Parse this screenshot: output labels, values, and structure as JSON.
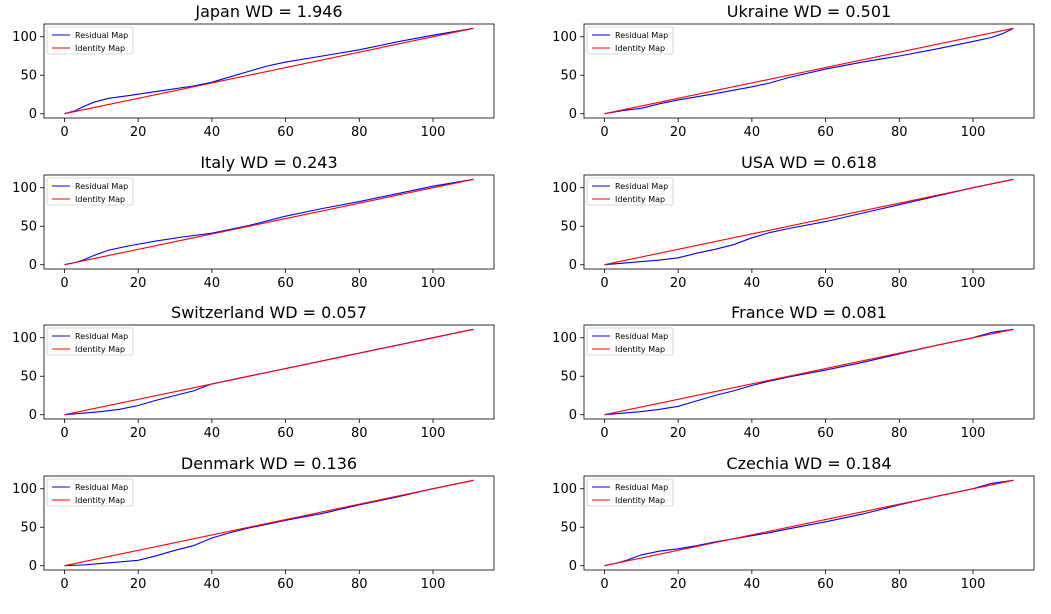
{
  "colors": {
    "residual": "#0000ff",
    "identity": "#ff0000",
    "axis": "#000000",
    "legend_border": "#cccccc"
  },
  "legend_labels": [
    "Residual Map",
    "Identity Map"
  ],
  "chart_data": [
    {
      "type": "line",
      "title": "Japan WD = 1.946",
      "xlim": [
        0,
        111
      ],
      "ylim": [
        0,
        111
      ],
      "xticks": [
        0,
        20,
        40,
        60,
        80,
        100
      ],
      "yticks": [
        0,
        50,
        100
      ],
      "legend": "top-left",
      "series": [
        {
          "name": "Residual Map",
          "x": [
            0,
            3,
            5,
            8,
            12,
            18,
            25,
            35,
            40,
            45,
            50,
            55,
            60,
            70,
            80,
            90,
            100,
            111
          ],
          "y": [
            0,
            4,
            9,
            15,
            20,
            24,
            29,
            36,
            41,
            48,
            55,
            62,
            67,
            75,
            83,
            93,
            102,
            111
          ]
        },
        {
          "name": "Identity Map",
          "x": [
            0,
            111
          ],
          "y": [
            0,
            111
          ]
        }
      ]
    },
    {
      "type": "line",
      "title": "Ukraine WD = 0.501",
      "xlim": [
        0,
        111
      ],
      "ylim": [
        0,
        111
      ],
      "xticks": [
        0,
        20,
        40,
        60,
        80,
        100
      ],
      "yticks": [
        0,
        50,
        100
      ],
      "legend": "top-left",
      "series": [
        {
          "name": "Residual Map",
          "x": [
            0,
            5,
            10,
            15,
            20,
            30,
            40,
            45,
            50,
            60,
            70,
            80,
            90,
            100,
            105,
            108,
            111
          ],
          "y": [
            0,
            4,
            7,
            13,
            18,
            26,
            35,
            40,
            47,
            58,
            67,
            75,
            84,
            94,
            99,
            104,
            111
          ]
        },
        {
          "name": "Identity Map",
          "x": [
            0,
            111
          ],
          "y": [
            0,
            111
          ]
        }
      ]
    },
    {
      "type": "line",
      "title": "Italy WD = 0.243",
      "xlim": [
        0,
        111
      ],
      "ylim": [
        0,
        111
      ],
      "xticks": [
        0,
        20,
        40,
        60,
        80,
        100
      ],
      "yticks": [
        0,
        50,
        100
      ],
      "legend": "top-left",
      "series": [
        {
          "name": "Residual Map",
          "x": [
            0,
            3,
            5,
            8,
            12,
            18,
            25,
            32,
            40,
            50,
            60,
            70,
            80,
            90,
            100,
            111
          ],
          "y": [
            0,
            3,
            6,
            12,
            19,
            25,
            31,
            36,
            41,
            51,
            63,
            73,
            82,
            92,
            102,
            111
          ]
        },
        {
          "name": "Identity Map",
          "x": [
            0,
            111
          ],
          "y": [
            0,
            111
          ]
        }
      ]
    },
    {
      "type": "line",
      "title": "USA WD = 0.618",
      "xlim": [
        0,
        111
      ],
      "ylim": [
        0,
        111
      ],
      "xticks": [
        0,
        20,
        40,
        60,
        80,
        100
      ],
      "yticks": [
        0,
        50,
        100
      ],
      "legend": "top-left",
      "series": [
        {
          "name": "Residual Map",
          "x": [
            0,
            5,
            10,
            15,
            20,
            25,
            30,
            35,
            40,
            45,
            50,
            60,
            70,
            80,
            90,
            100,
            111
          ],
          "y": [
            0,
            2,
            4,
            6,
            9,
            15,
            20,
            26,
            35,
            42,
            47,
            56,
            67,
            78,
            89,
            100,
            111
          ]
        },
        {
          "name": "Identity Map",
          "x": [
            0,
            111
          ],
          "y": [
            0,
            111
          ]
        }
      ]
    },
    {
      "type": "line",
      "title": "Switzerland WD = 0.057",
      "xlim": [
        0,
        111
      ],
      "ylim": [
        0,
        111
      ],
      "xticks": [
        0,
        20,
        40,
        60,
        80,
        100
      ],
      "yticks": [
        0,
        50,
        100
      ],
      "legend": "top-left",
      "series": [
        {
          "name": "Residual Map",
          "x": [
            0,
            5,
            10,
            15,
            20,
            25,
            30,
            35,
            40,
            45,
            50,
            60,
            70,
            80,
            90,
            100,
            111
          ],
          "y": [
            0,
            2,
            4,
            7,
            12,
            19,
            25,
            31,
            40,
            45,
            50,
            60,
            70,
            80,
            90,
            100,
            111
          ]
        },
        {
          "name": "Identity Map",
          "x": [
            0,
            111
          ],
          "y": [
            0,
            111
          ]
        }
      ]
    },
    {
      "type": "line",
      "title": "France WD = 0.081",
      "xlim": [
        0,
        111
      ],
      "ylim": [
        0,
        111
      ],
      "xticks": [
        0,
        20,
        40,
        60,
        80,
        100
      ],
      "yticks": [
        0,
        50,
        100
      ],
      "legend": "top-left",
      "series": [
        {
          "name": "Residual Map",
          "x": [
            0,
            5,
            10,
            15,
            20,
            25,
            30,
            35,
            40,
            45,
            50,
            60,
            70,
            80,
            90,
            100,
            105,
            111
          ],
          "y": [
            0,
            2,
            4,
            7,
            11,
            18,
            25,
            31,
            38,
            44,
            49,
            58,
            68,
            79,
            90,
            100,
            107,
            111
          ]
        },
        {
          "name": "Identity Map",
          "x": [
            0,
            111
          ],
          "y": [
            0,
            111
          ]
        }
      ]
    },
    {
      "type": "line",
      "title": "Denmark WD = 0.136",
      "xlim": [
        0,
        111
      ],
      "ylim": [
        0,
        111
      ],
      "xticks": [
        0,
        20,
        40,
        60,
        80,
        100
      ],
      "yticks": [
        0,
        50,
        100
      ],
      "legend": "top-left",
      "series": [
        {
          "name": "Residual Map",
          "x": [
            0,
            5,
            10,
            15,
            20,
            25,
            30,
            35,
            40,
            45,
            50,
            55,
            60,
            70,
            80,
            90,
            100,
            111
          ],
          "y": [
            0,
            1,
            3,
            5,
            7,
            13,
            20,
            26,
            36,
            43,
            49,
            54,
            59,
            68,
            79,
            89,
            100,
            111
          ]
        },
        {
          "name": "Identity Map",
          "x": [
            0,
            111
          ],
          "y": [
            0,
            111
          ]
        }
      ]
    },
    {
      "type": "line",
      "title": "Czechia WD = 0.184",
      "xlim": [
        0,
        111
      ],
      "ylim": [
        0,
        111
      ],
      "xticks": [
        0,
        20,
        40,
        60,
        80,
        100
      ],
      "yticks": [
        0,
        50,
        100
      ],
      "legend": "top-left",
      "series": [
        {
          "name": "Residual Map",
          "x": [
            0,
            3,
            6,
            10,
            15,
            20,
            25,
            30,
            35,
            40,
            45,
            50,
            60,
            70,
            80,
            90,
            100,
            105,
            111
          ],
          "y": [
            0,
            3,
            7,
            14,
            19,
            22,
            26,
            31,
            35,
            39,
            43,
            48,
            57,
            67,
            79,
            90,
            100,
            107,
            111
          ]
        },
        {
          "name": "Identity Map",
          "x": [
            0,
            111
          ],
          "y": [
            0,
            111
          ]
        }
      ]
    }
  ]
}
